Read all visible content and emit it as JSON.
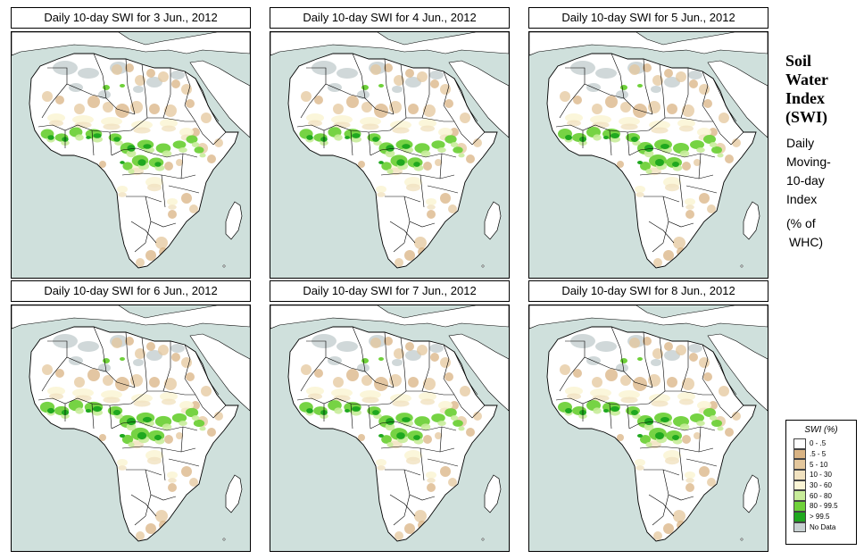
{
  "panels": [
    {
      "title": "Daily 10-day SWI for  3 Jun., 2012",
      "intensity": 0.45
    },
    {
      "title": "Daily 10-day SWI for  4 Jun., 2012",
      "intensity": 0.5
    },
    {
      "title": "Daily 10-day SWI for  5 Jun., 2012",
      "intensity": 0.6
    },
    {
      "title": "Daily 10-day SWI for  6 Jun., 2012",
      "intensity": 0.65
    },
    {
      "title": "Daily 10-day SWI for  7 Jun., 2012",
      "intensity": 0.55
    },
    {
      "title": "Daily 10-day SWI for  8 Jun., 2012",
      "intensity": 0.6
    }
  ],
  "side": {
    "title_lines": [
      "Soil",
      "Water",
      "Index",
      "(SWI)"
    ],
    "subtitle_lines": [
      "Daily",
      "Moving-",
      "10-day",
      "Index"
    ],
    "whc_lines": [
      "(% of",
      "WHC)"
    ]
  },
  "legend": {
    "title": "SWI (%)",
    "items": [
      {
        "label": "0 - .5",
        "color": "#ffffff"
      },
      {
        "label": ".5 - 5",
        "color": "#d9b383"
      },
      {
        "label": "5 - 10",
        "color": "#e4c79c"
      },
      {
        "label": "10 - 30",
        "color": "#f1e2c0"
      },
      {
        "label": "30 - 60",
        "color": "#fbf5d6"
      },
      {
        "label": "60 - 80",
        "color": "#c8ec9a"
      },
      {
        "label": "80 - 99.5",
        "color": "#6fd13a"
      },
      {
        "label": "> 99.5",
        "color": "#1fa81f"
      },
      {
        "label": "No Data",
        "color": "#c8d1d2"
      }
    ]
  },
  "colors": {
    "ocean": "#cfe0dc",
    "land": "#ffffff",
    "border": "#000000"
  }
}
